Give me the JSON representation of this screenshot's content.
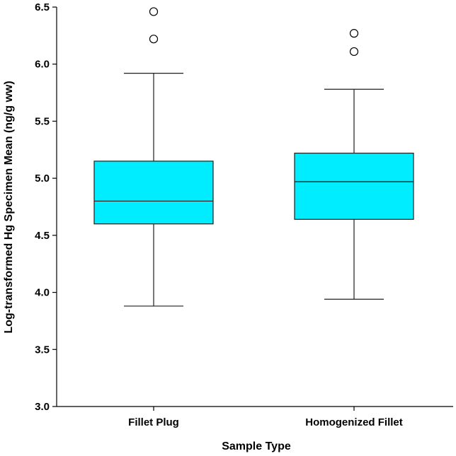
{
  "chart_data": {
    "type": "box",
    "title": "",
    "xlabel": "Sample Type",
    "ylabel": "Log-transformed Hg Specimen Mean (ng/g ww)",
    "ylim": [
      3.0,
      6.5
    ],
    "yticks": [
      3.0,
      3.5,
      4.0,
      4.5,
      5.0,
      5.5,
      6.0,
      6.5
    ],
    "ytick_labels": [
      "3.0",
      "3.5",
      "4.0",
      "4.5",
      "5.0",
      "5.5",
      "6.0",
      "6.5"
    ],
    "categories": [
      "Fillet Plug",
      "Homogenized Fillet"
    ],
    "boxes": [
      {
        "category": "Fillet Plug",
        "whisker_low": 3.88,
        "q1": 4.6,
        "median": 4.8,
        "q3": 5.15,
        "whisker_high": 5.92,
        "outliers": [
          6.22,
          6.46
        ]
      },
      {
        "category": "Homogenized Fillet",
        "whisker_low": 3.94,
        "q1": 4.64,
        "median": 4.97,
        "q3": 5.22,
        "whisker_high": 5.78,
        "outliers": [
          6.11,
          6.27
        ]
      }
    ],
    "grid": false,
    "legend": "none"
  },
  "colors": {
    "box_fill": "#00ECFF",
    "line": "#1f1f1f",
    "axis": "#000000",
    "outlier_fill": "#ffffff"
  }
}
